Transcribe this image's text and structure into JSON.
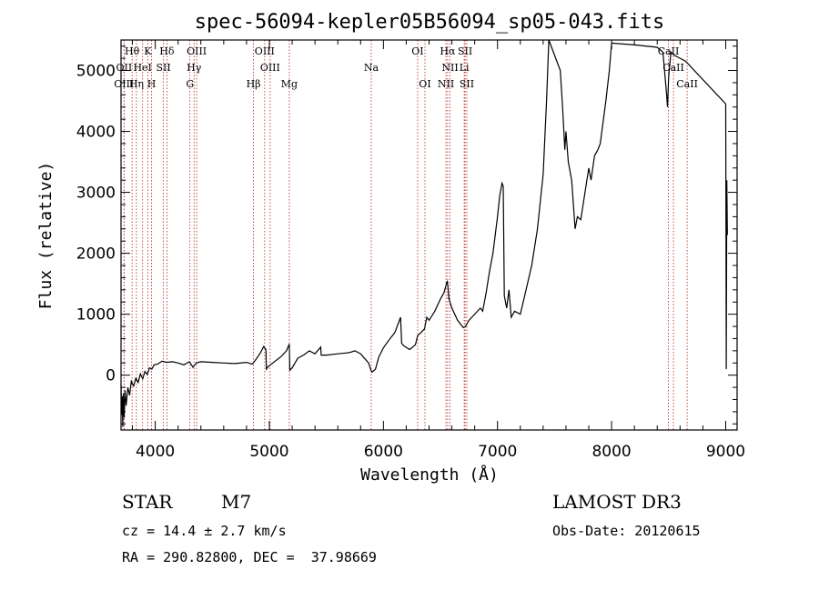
{
  "chart_data": {
    "type": "line",
    "title": "spec-56094-kepler05B56094_sp05-043.fits",
    "xlabel": "Wavelength (Å)",
    "ylabel": "Flux (relative)",
    "xlim": [
      3700,
      9100
    ],
    "ylim": [
      -900,
      5500
    ],
    "x_ticks": [
      4000,
      5000,
      6000,
      7000,
      8000,
      9000
    ],
    "y_ticks": [
      0,
      1000,
      2000,
      3000,
      4000,
      5000
    ],
    "series": [
      {
        "name": "flux",
        "points": [
          [
            3700,
            -150
          ],
          [
            3705,
            -650
          ],
          [
            3710,
            -350
          ],
          [
            3715,
            -850
          ],
          [
            3720,
            -300
          ],
          [
            3728,
            -700
          ],
          [
            3735,
            -250
          ],
          [
            3745,
            -500
          ],
          [
            3760,
            -200
          ],
          [
            3775,
            -330
          ],
          [
            3790,
            -100
          ],
          [
            3810,
            -180
          ],
          [
            3830,
            -50
          ],
          [
            3850,
            -120
          ],
          [
            3870,
            20
          ],
          [
            3890,
            -60
          ],
          [
            3910,
            60
          ],
          [
            3930,
            10
          ],
          [
            3950,
            120
          ],
          [
            3970,
            100
          ],
          [
            3990,
            170
          ],
          [
            4020,
            180
          ],
          [
            4060,
            230
          ],
          [
            4100,
            210
          ],
          [
            4150,
            220
          ],
          [
            4200,
            200
          ],
          [
            4250,
            170
          ],
          [
            4300,
            220
          ],
          [
            4330,
            130
          ],
          [
            4360,
            200
          ],
          [
            4400,
            220
          ],
          [
            4500,
            210
          ],
          [
            4600,
            200
          ],
          [
            4700,
            190
          ],
          [
            4800,
            210
          ],
          [
            4850,
            180
          ],
          [
            4880,
            250
          ],
          [
            4920,
            360
          ],
          [
            4950,
            470
          ],
          [
            4970,
            420
          ],
          [
            4975,
            100
          ],
          [
            4990,
            140
          ],
          [
            5050,
            230
          ],
          [
            5100,
            300
          ],
          [
            5150,
            400
          ],
          [
            5175,
            510
          ],
          [
            5180,
            80
          ],
          [
            5200,
            120
          ],
          [
            5250,
            280
          ],
          [
            5300,
            330
          ],
          [
            5350,
            400
          ],
          [
            5400,
            350
          ],
          [
            5450,
            460
          ],
          [
            5455,
            330
          ],
          [
            5500,
            330
          ],
          [
            5600,
            350
          ],
          [
            5700,
            370
          ],
          [
            5750,
            400
          ],
          [
            5800,
            350
          ],
          [
            5870,
            200
          ],
          [
            5890,
            80
          ],
          [
            5900,
            50
          ],
          [
            5930,
            100
          ],
          [
            5960,
            300
          ],
          [
            6000,
            450
          ],
          [
            6050,
            580
          ],
          [
            6100,
            700
          ],
          [
            6150,
            950
          ],
          [
            6160,
            520
          ],
          [
            6180,
            480
          ],
          [
            6230,
            420
          ],
          [
            6280,
            500
          ],
          [
            6300,
            650
          ],
          [
            6330,
            700
          ],
          [
            6360,
            760
          ],
          [
            6380,
            950
          ],
          [
            6400,
            900
          ],
          [
            6450,
            1050
          ],
          [
            6500,
            1250
          ],
          [
            6530,
            1350
          ],
          [
            6560,
            1550
          ],
          [
            6575,
            1250
          ],
          [
            6600,
            1100
          ],
          [
            6650,
            900
          ],
          [
            6700,
            780
          ],
          [
            6720,
            800
          ],
          [
            6750,
            900
          ],
          [
            6800,
            1000
          ],
          [
            6850,
            1100
          ],
          [
            6870,
            1050
          ],
          [
            6900,
            1350
          ],
          [
            6930,
            1700
          ],
          [
            6960,
            2000
          ],
          [
            6980,
            2300
          ],
          [
            7000,
            2600
          ],
          [
            7020,
            2950
          ],
          [
            7040,
            3150
          ],
          [
            7050,
            3100
          ],
          [
            7060,
            1300
          ],
          [
            7080,
            1100
          ],
          [
            7100,
            1400
          ],
          [
            7120,
            950
          ],
          [
            7150,
            1050
          ],
          [
            7200,
            1000
          ],
          [
            7250,
            1400
          ],
          [
            7300,
            1800
          ],
          [
            7350,
            2400
          ],
          [
            7400,
            3300
          ],
          [
            7430,
            4500
          ],
          [
            7450,
            5500
          ],
          [
            7550,
            5000
          ],
          [
            7570,
            4400
          ],
          [
            7590,
            3700
          ],
          [
            7600,
            4000
          ],
          [
            7620,
            3500
          ],
          [
            7650,
            3200
          ],
          [
            7680,
            2400
          ],
          [
            7700,
            2600
          ],
          [
            7730,
            2550
          ],
          [
            7750,
            2800
          ],
          [
            7800,
            3400
          ],
          [
            7820,
            3200
          ],
          [
            7850,
            3600
          ],
          [
            7880,
            3700
          ],
          [
            7900,
            3800
          ],
          [
            7950,
            4500
          ],
          [
            7980,
            5000
          ],
          [
            8000,
            5450
          ],
          [
            8200,
            5420
          ],
          [
            8400,
            5380
          ],
          [
            8450,
            5300
          ],
          [
            8480,
            4650
          ],
          [
            8490,
            4400
          ],
          [
            8500,
            4900
          ],
          [
            8520,
            5300
          ],
          [
            8550,
            5250
          ],
          [
            8600,
            5200
          ],
          [
            8650,
            5150
          ],
          [
            9000,
            4450
          ],
          [
            9005,
            100
          ],
          [
            9010,
            3200
          ],
          [
            9015,
            2300
          ]
        ]
      }
    ],
    "reference_lines": [
      {
        "label": "Hθ",
        "x": 3797,
        "row": 0
      },
      {
        "label": "K",
        "x": 3934,
        "row": 0
      },
      {
        "label": "Hδ",
        "x": 4102,
        "row": 0
      },
      {
        "label": "OIII",
        "x": 4363,
        "row": 0
      },
      {
        "label": "OIII",
        "x": 4959,
        "row": 0
      },
      {
        "label": "OI",
        "x": 6300,
        "row": 0
      },
      {
        "label": "Hα",
        "x": 6563,
        "row": 0
      },
      {
        "label": "SII",
        "x": 6716,
        "row": 0
      },
      {
        "label": "CaII",
        "x": 8498,
        "row": 0
      },
      {
        "label": "OII",
        "x": 3727,
        "row": 1
      },
      {
        "label": "HeI",
        "x": 3889,
        "row": 1
      },
      {
        "label": "SII",
        "x": 4072,
        "row": 1
      },
      {
        "label": "Hγ",
        "x": 4340,
        "row": 1
      },
      {
        "label": "OIII",
        "x": 5007,
        "row": 1
      },
      {
        "label": "Na",
        "x": 5893,
        "row": 1
      },
      {
        "label": "NII",
        "x": 6584,
        "row": 1
      },
      {
        "label": "Li",
        "x": 6708,
        "row": 1
      },
      {
        "label": "CaII",
        "x": 8542,
        "row": 1
      },
      {
        "label": "OIII",
        "x": 3726,
        "row": 2
      },
      {
        "label": "Hη",
        "x": 3835,
        "row": 2
      },
      {
        "label": "H",
        "x": 3968,
        "row": 2
      },
      {
        "label": "G",
        "x": 4304,
        "row": 2
      },
      {
        "label": "Hβ",
        "x": 4861,
        "row": 2
      },
      {
        "label": "Mg",
        "x": 5175,
        "row": 2
      },
      {
        "label": "OI",
        "x": 6364,
        "row": 2
      },
      {
        "label": "NII",
        "x": 6548,
        "row": 2
      },
      {
        "label": "SII",
        "x": 6731,
        "row": 2
      },
      {
        "label": "CaII",
        "x": 8662,
        "row": 2
      }
    ]
  },
  "info": {
    "object_class": "STAR",
    "subclass": "M7",
    "survey": "LAMOST DR3",
    "redshift_text": "cz = 14.4 ± 2.7 km/s",
    "obs_date_text": "Obs-Date: 20120615",
    "coords_text": "RA = 290.82800, DEC =  37.98669"
  },
  "colors": {
    "spectrum": "#000000",
    "marker": "#b22222",
    "axis": "#000000"
  }
}
